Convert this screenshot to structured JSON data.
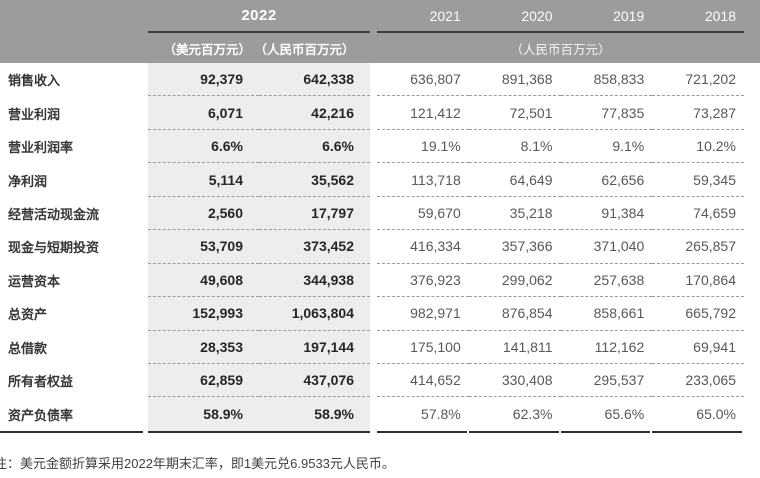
{
  "table": {
    "header": {
      "year_2022": "2022",
      "units_2022": "（美元百万元） （人民币百万元）",
      "years": [
        "2021",
        "2020",
        "2019",
        "2018"
      ],
      "units_years": "（人民币百万元）"
    },
    "rows": [
      {
        "label": "销售收入",
        "usd": "92,379",
        "rmb": "642,338",
        "y2021": "636,807",
        "y2020": "891,368",
        "y2019": "858,833",
        "y2018": "721,202"
      },
      {
        "label": "营业利润",
        "usd": "6,071",
        "rmb": "42,216",
        "y2021": "121,412",
        "y2020": "72,501",
        "y2019": "77,835",
        "y2018": "73,287"
      },
      {
        "label": "营业利润率",
        "usd": "6.6%",
        "rmb": "6.6%",
        "y2021": "19.1%",
        "y2020": "8.1%",
        "y2019": "9.1%",
        "y2018": "10.2%"
      },
      {
        "label": "净利润",
        "usd": "5,114",
        "rmb": "35,562",
        "y2021": "113,718",
        "y2020": "64,649",
        "y2019": "62,656",
        "y2018": "59,345"
      },
      {
        "label": "经营活动现金流",
        "usd": "2,560",
        "rmb": "17,797",
        "y2021": "59,670",
        "y2020": "35,218",
        "y2019": "91,384",
        "y2018": "74,659"
      },
      {
        "label": "现金与短期投资",
        "usd": "53,709",
        "rmb": "373,452",
        "y2021": "416,334",
        "y2020": "357,366",
        "y2019": "371,040",
        "y2018": "265,857"
      },
      {
        "label": "运营资本",
        "usd": "49,608",
        "rmb": "344,938",
        "y2021": "376,923",
        "y2020": "299,062",
        "y2019": "257,638",
        "y2018": "170,864"
      },
      {
        "label": "总资产",
        "usd": "152,993",
        "rmb": "1,063,804",
        "y2021": "982,971",
        "y2020": "876,854",
        "y2019": "858,661",
        "y2018": "665,792"
      },
      {
        "label": "总借款",
        "usd": "28,353",
        "rmb": "197,144",
        "y2021": "175,100",
        "y2020": "141,811",
        "y2019": "112,162",
        "y2018": "69,941"
      },
      {
        "label": "所有者权益",
        "usd": "62,859",
        "rmb": "437,076",
        "y2021": "414,652",
        "y2020": "330,408",
        "y2019": "295,537",
        "y2018": "233,065"
      },
      {
        "label": "资产负债率",
        "usd": "58.9%",
        "rmb": "58.9%",
        "y2021": "57.8%",
        "y2020": "62.3%",
        "y2019": "65.6%",
        "y2018": "65.0%"
      }
    ]
  },
  "note": "注：美元金额折算采用2022年期末汇率，即1美元兑6.9533元人民币。",
  "colors": {
    "header_bg": "#9c9c9c",
    "header_text": "#ffffff",
    "band_bg": "#ededed",
    "header_rule": "#3e3e3e",
    "bottom_rule": "#2f2f2f",
    "dashed_separator": "#9b9b9b",
    "value_2022_text": "#262626",
    "value_history_text": "#585858"
  }
}
